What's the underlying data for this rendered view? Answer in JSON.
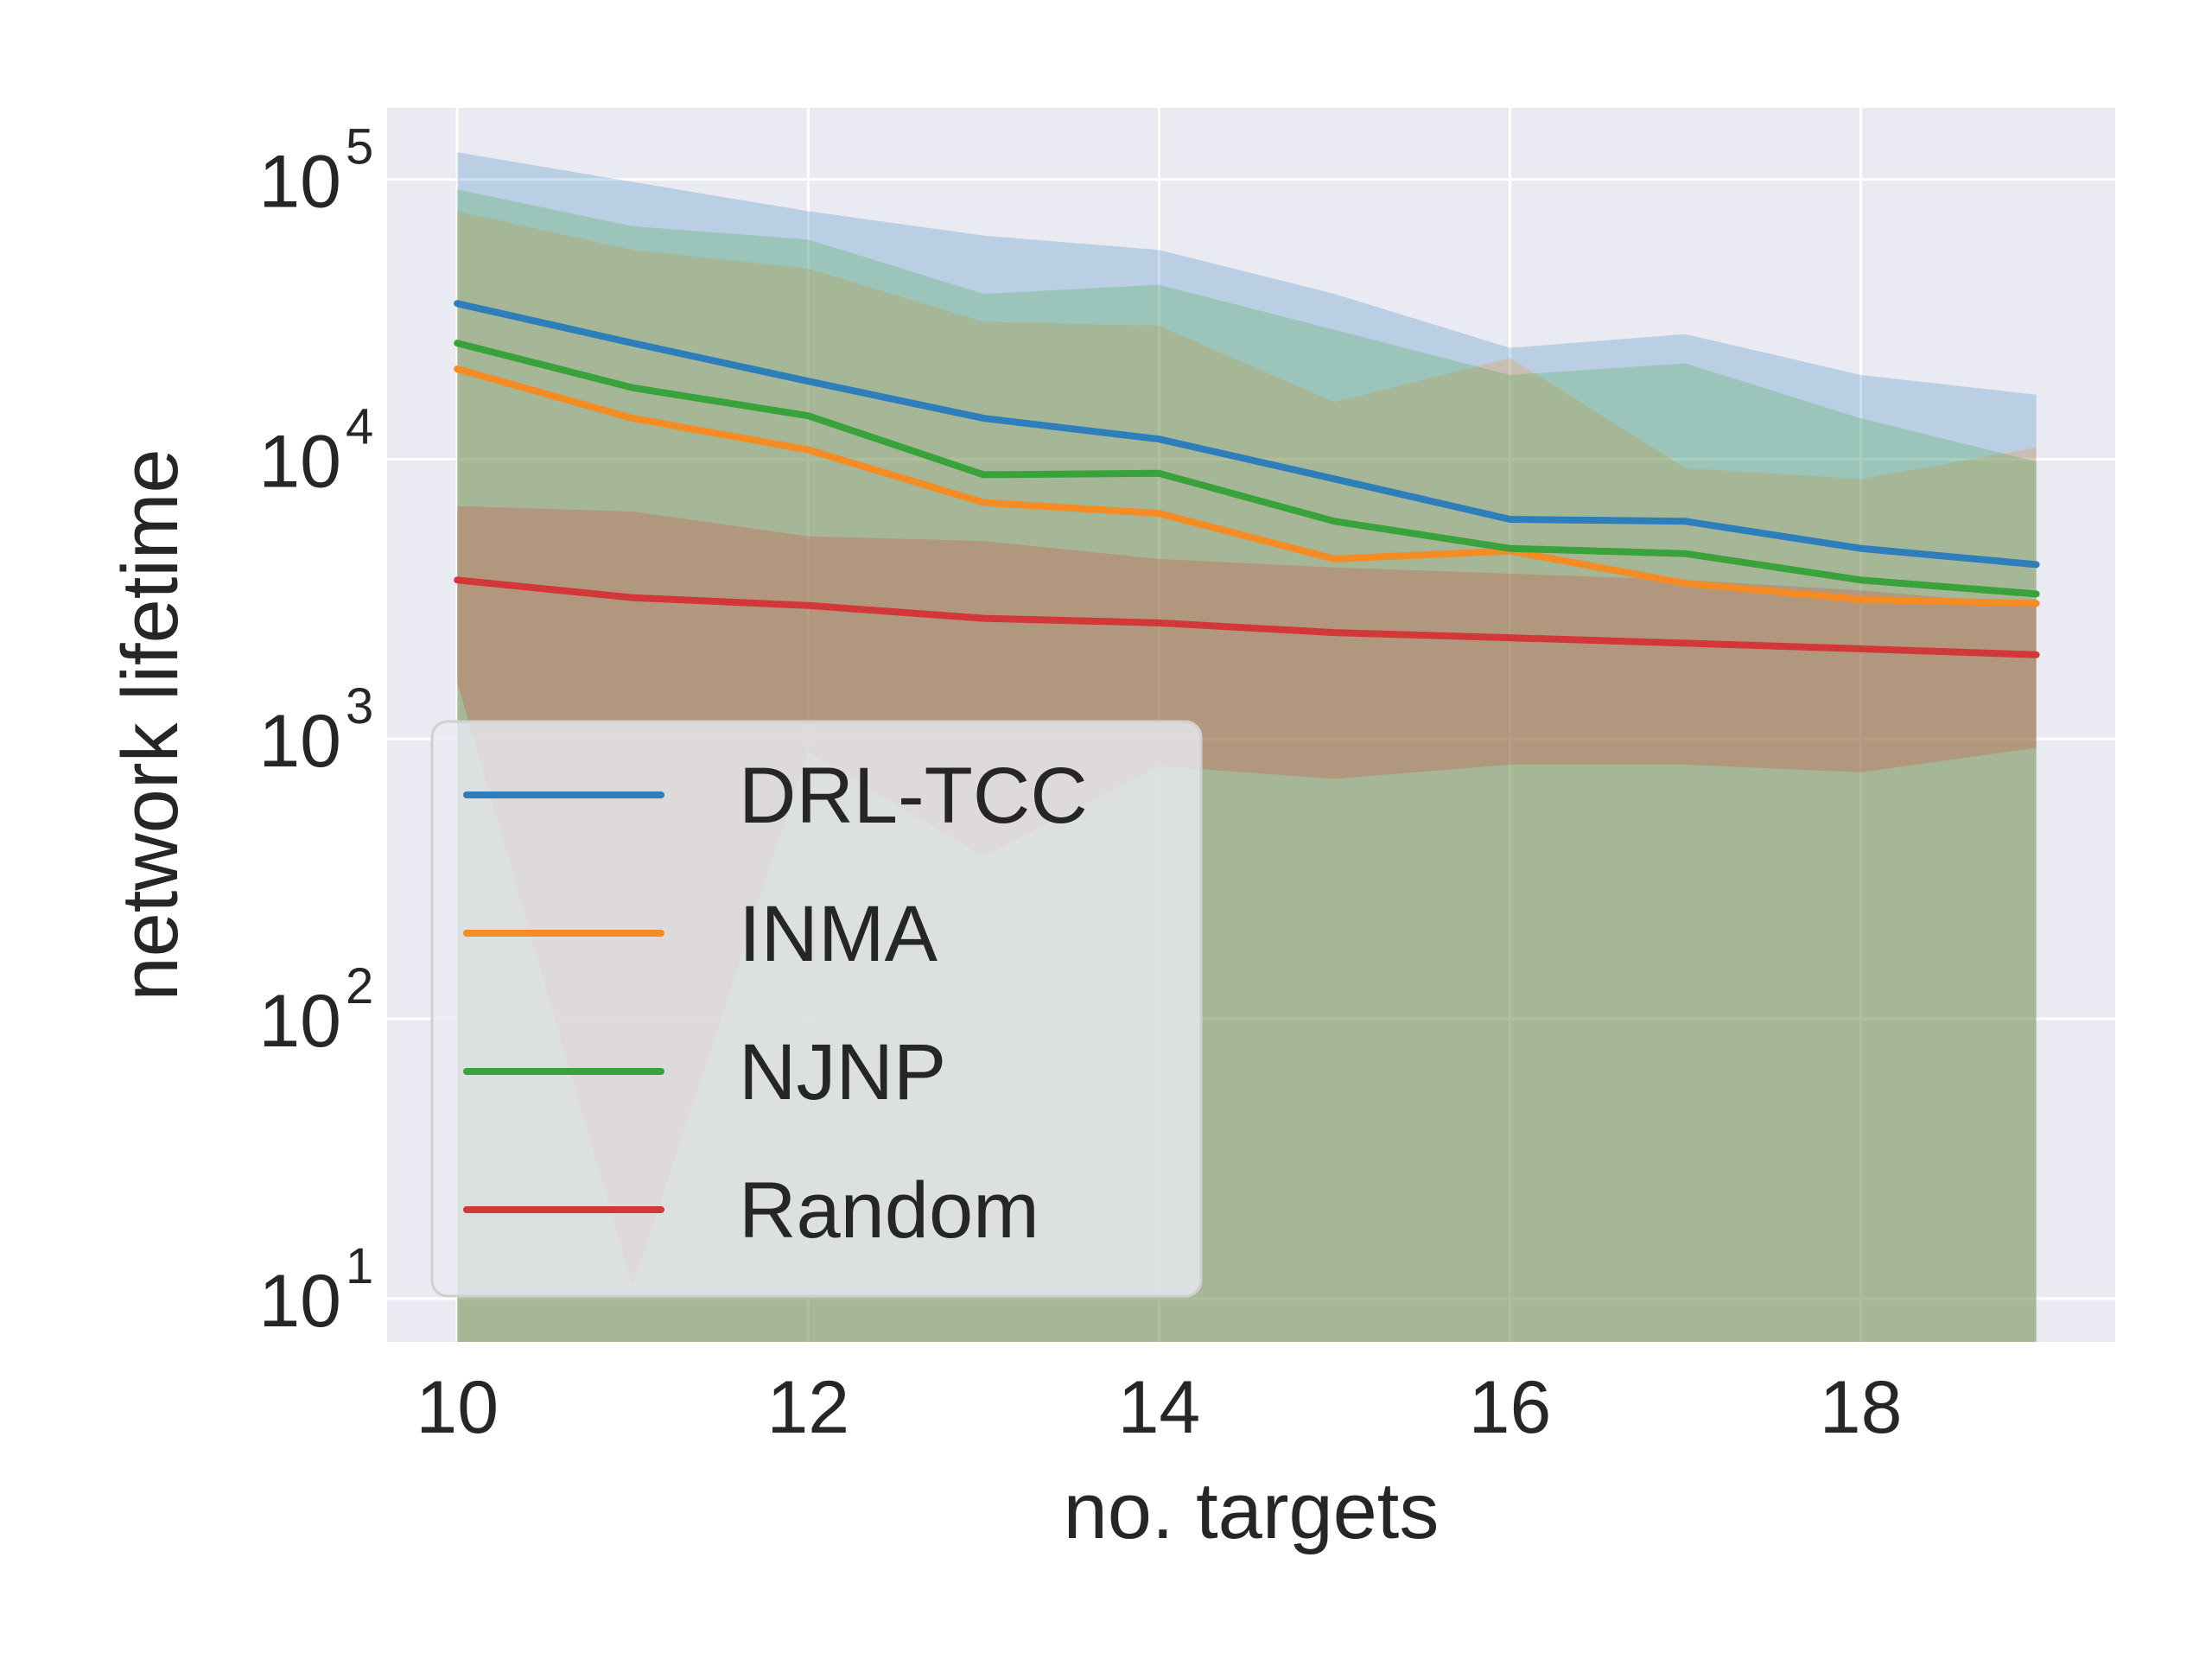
{
  "chart_data": {
    "type": "line",
    "xlabel": "no. targets",
    "ylabel": "network lifetime",
    "yscale": "log",
    "xlim": [
      9.6,
      19.45
    ],
    "ylim": [
      7,
      180000
    ],
    "xticks": [
      10,
      12,
      14,
      16,
      18
    ],
    "xtick_labels": [
      "10",
      "12",
      "14",
      "16",
      "18"
    ],
    "yticks": [
      10,
      100,
      1000,
      10000,
      100000
    ],
    "ytick_labels": [
      {
        "base": "10",
        "exp": "1"
      },
      {
        "base": "10",
        "exp": "2"
      },
      {
        "base": "10",
        "exp": "3"
      },
      {
        "base": "10",
        "exp": "4"
      },
      {
        "base": "10",
        "exp": "5"
      }
    ],
    "grid": true,
    "legend_position": "lower-left",
    "x": [
      10,
      11,
      12,
      13,
      14,
      15,
      16,
      17,
      18,
      19
    ],
    "series": [
      {
        "name": "DRL-TCC",
        "color": "#2f7ebc",
        "values": [
          36000,
          26000,
          19000,
          14000,
          11800,
          8500,
          6100,
          6000,
          4800,
          4200
        ],
        "band_upper": [
          125000,
          98000,
          77000,
          63000,
          56000,
          39000,
          25000,
          28000,
          20000,
          17000
        ],
        "band_lower": [
          7,
          7,
          7,
          7,
          7,
          7,
          7,
          7,
          7,
          7
        ]
      },
      {
        "name": "INMA",
        "color": "#f58b23",
        "values": [
          21000,
          14000,
          10800,
          7000,
          6400,
          4400,
          4700,
          3600,
          3150,
          3050
        ],
        "band_upper": [
          77000,
          56000,
          48000,
          31000,
          30000,
          16000,
          23000,
          9300,
          8500,
          11000
        ],
        "band_lower": [
          7,
          7,
          7,
          7,
          7,
          7,
          7,
          7,
          7,
          7
        ]
      },
      {
        "name": "NJNP",
        "color": "#3aa23a",
        "values": [
          26000,
          18000,
          14300,
          8800,
          8900,
          6000,
          4800,
          4600,
          3700,
          3300
        ],
        "band_upper": [
          92000,
          68000,
          61000,
          39000,
          42000,
          29000,
          20000,
          22000,
          14000,
          9800
        ],
        "band_lower": [
          7,
          7,
          7,
          7,
          7,
          7,
          7,
          7,
          7,
          7
        ]
      },
      {
        "name": "Random",
        "color": "#d33838",
        "values": [
          3700,
          3200,
          3000,
          2700,
          2600,
          2400,
          2300,
          2200,
          2100,
          2000
        ],
        "band_upper": [
          6800,
          6500,
          5300,
          5100,
          4400,
          4100,
          3900,
          3700,
          3400,
          3000
        ],
        "band_lower": [
          1600,
          11,
          900,
          380,
          800,
          720,
          810,
          810,
          760,
          930
        ]
      }
    ]
  }
}
